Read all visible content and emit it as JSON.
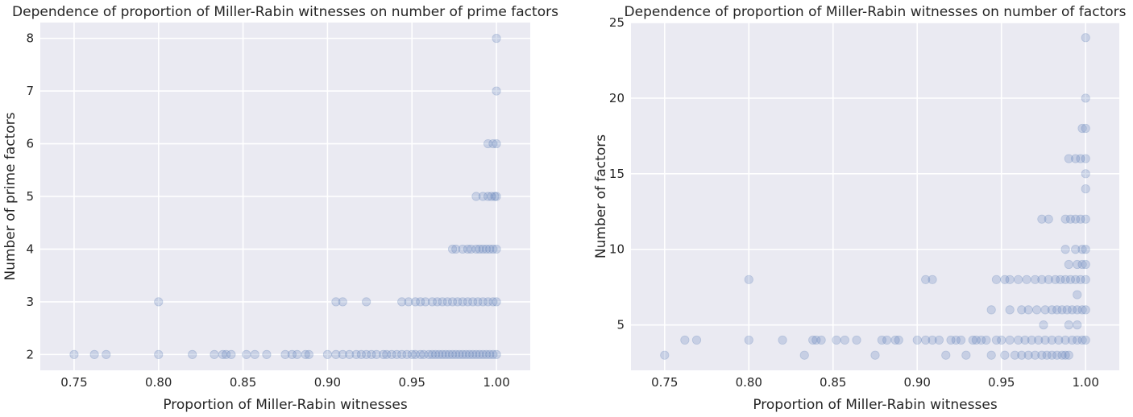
{
  "chart_data": [
    {
      "type": "scatter",
      "title": "Dependence of proportion of Miller-Rabin witnesses on number of prime factors",
      "xlabel": "Proportion of Miller-Rabin witnesses",
      "ylabel": "Number of prime factors",
      "xlim": [
        0.73,
        1.02
      ],
      "ylim": [
        1.7,
        8.3
      ],
      "xticks": [
        0.75,
        0.8,
        0.85,
        0.9,
        0.95,
        1.0
      ],
      "xtick_labels": [
        "0.75",
        "0.80",
        "0.85",
        "0.90",
        "0.95",
        "1.00"
      ],
      "yticks": [
        2,
        3,
        4,
        5,
        6,
        7,
        8
      ],
      "ytick_labels": [
        "2",
        "3",
        "4",
        "5",
        "6",
        "7",
        "8"
      ],
      "grid": true,
      "color": "#4c72b0",
      "points": [
        [
          0.75,
          2
        ],
        [
          0.762,
          2
        ],
        [
          0.769,
          2
        ],
        [
          0.8,
          2
        ],
        [
          0.82,
          2
        ],
        [
          0.833,
          2
        ],
        [
          0.838,
          2
        ],
        [
          0.84,
          2
        ],
        [
          0.843,
          2
        ],
        [
          0.852,
          2
        ],
        [
          0.857,
          2
        ],
        [
          0.864,
          2
        ],
        [
          0.875,
          2
        ],
        [
          0.879,
          2
        ],
        [
          0.882,
          2
        ],
        [
          0.887,
          2
        ],
        [
          0.889,
          2
        ],
        [
          0.9,
          2
        ],
        [
          0.905,
          2
        ],
        [
          0.909,
          2
        ],
        [
          0.913,
          2
        ],
        [
          0.917,
          2
        ],
        [
          0.92,
          2
        ],
        [
          0.923,
          2
        ],
        [
          0.926,
          2
        ],
        [
          0.929,
          2
        ],
        [
          0.933,
          2
        ],
        [
          0.935,
          2
        ],
        [
          0.938,
          2
        ],
        [
          0.941,
          2
        ],
        [
          0.944,
          2
        ],
        [
          0.947,
          2
        ],
        [
          0.95,
          2
        ],
        [
          0.952,
          2
        ],
        [
          0.955,
          2
        ],
        [
          0.957,
          2
        ],
        [
          0.96,
          2
        ],
        [
          0.962,
          2
        ],
        [
          0.964,
          2
        ],
        [
          0.966,
          2
        ],
        [
          0.968,
          2
        ],
        [
          0.97,
          2
        ],
        [
          0.972,
          2
        ],
        [
          0.974,
          2
        ],
        [
          0.976,
          2
        ],
        [
          0.978,
          2
        ],
        [
          0.98,
          2
        ],
        [
          0.982,
          2
        ],
        [
          0.984,
          2
        ],
        [
          0.986,
          2
        ],
        [
          0.988,
          2
        ],
        [
          0.99,
          2
        ],
        [
          0.992,
          2
        ],
        [
          0.994,
          2
        ],
        [
          0.996,
          2
        ],
        [
          0.998,
          2
        ],
        [
          1.0,
          2
        ],
        [
          0.8,
          3
        ],
        [
          0.905,
          3
        ],
        [
          0.909,
          3
        ],
        [
          0.923,
          3
        ],
        [
          0.944,
          3
        ],
        [
          0.948,
          3
        ],
        [
          0.952,
          3
        ],
        [
          0.955,
          3
        ],
        [
          0.958,
          3
        ],
        [
          0.962,
          3
        ],
        [
          0.965,
          3
        ],
        [
          0.968,
          3
        ],
        [
          0.971,
          3
        ],
        [
          0.974,
          3
        ],
        [
          0.977,
          3
        ],
        [
          0.98,
          3
        ],
        [
          0.983,
          3
        ],
        [
          0.986,
          3
        ],
        [
          0.989,
          3
        ],
        [
          0.992,
          3
        ],
        [
          0.995,
          3
        ],
        [
          0.998,
          3
        ],
        [
          1.0,
          3
        ],
        [
          0.974,
          4
        ],
        [
          0.976,
          4
        ],
        [
          0.98,
          4
        ],
        [
          0.983,
          4
        ],
        [
          0.985,
          4
        ],
        [
          0.988,
          4
        ],
        [
          0.99,
          4
        ],
        [
          0.992,
          4
        ],
        [
          0.994,
          4
        ],
        [
          0.996,
          4
        ],
        [
          0.998,
          4
        ],
        [
          1.0,
          4
        ],
        [
          0.988,
          5
        ],
        [
          0.992,
          5
        ],
        [
          0.995,
          5
        ],
        [
          0.997,
          5
        ],
        [
          0.999,
          5
        ],
        [
          1.0,
          5
        ],
        [
          0.995,
          6
        ],
        [
          0.998,
          6
        ],
        [
          1.0,
          6
        ],
        [
          1.0,
          7
        ],
        [
          1.0,
          8
        ]
      ]
    },
    {
      "type": "scatter",
      "title": "Dependence of proportion of Miller-Rabin witnesses on number of factors",
      "xlabel": "Proportion of Miller-Rabin witnesses",
      "ylabel": "Number of factors",
      "xlim": [
        0.73,
        1.02
      ],
      "ylim": [
        2.0,
        25.0
      ],
      "xticks": [
        0.75,
        0.8,
        0.85,
        0.9,
        0.95,
        1.0
      ],
      "xtick_labels": [
        "0.75",
        "0.80",
        "0.85",
        "0.90",
        "0.95",
        "1.00"
      ],
      "yticks": [
        5,
        10,
        15,
        20,
        25
      ],
      "ytick_labels": [
        "5",
        "10",
        "15",
        "20",
        "25"
      ],
      "grid": true,
      "color": "#4c72b0",
      "points": [
        [
          0.75,
          3
        ],
        [
          0.833,
          3
        ],
        [
          0.875,
          3
        ],
        [
          0.917,
          3
        ],
        [
          0.929,
          3
        ],
        [
          0.944,
          3
        ],
        [
          0.952,
          3
        ],
        [
          0.958,
          3
        ],
        [
          0.962,
          3
        ],
        [
          0.966,
          3
        ],
        [
          0.97,
          3
        ],
        [
          0.974,
          3
        ],
        [
          0.977,
          3
        ],
        [
          0.98,
          3
        ],
        [
          0.983,
          3
        ],
        [
          0.986,
          3
        ],
        [
          0.988,
          3
        ],
        [
          0.99,
          3
        ],
        [
          0.762,
          4
        ],
        [
          0.769,
          4
        ],
        [
          0.8,
          4
        ],
        [
          0.82,
          4
        ],
        [
          0.838,
          4
        ],
        [
          0.84,
          4
        ],
        [
          0.843,
          4
        ],
        [
          0.852,
          4
        ],
        [
          0.857,
          4
        ],
        [
          0.864,
          4
        ],
        [
          0.879,
          4
        ],
        [
          0.882,
          4
        ],
        [
          0.887,
          4
        ],
        [
          0.889,
          4
        ],
        [
          0.9,
          4
        ],
        [
          0.905,
          4
        ],
        [
          0.909,
          4
        ],
        [
          0.913,
          4
        ],
        [
          0.92,
          4
        ],
        [
          0.923,
          4
        ],
        [
          0.926,
          4
        ],
        [
          0.933,
          4
        ],
        [
          0.935,
          4
        ],
        [
          0.938,
          4
        ],
        [
          0.941,
          4
        ],
        [
          0.947,
          4
        ],
        [
          0.95,
          4
        ],
        [
          0.955,
          4
        ],
        [
          0.96,
          4
        ],
        [
          0.964,
          4
        ],
        [
          0.968,
          4
        ],
        [
          0.972,
          4
        ],
        [
          0.976,
          4
        ],
        [
          0.98,
          4
        ],
        [
          0.984,
          4
        ],
        [
          0.988,
          4
        ],
        [
          0.992,
          4
        ],
        [
          0.995,
          4
        ],
        [
          0.998,
          4
        ],
        [
          1.0,
          4
        ],
        [
          0.975,
          5
        ],
        [
          0.99,
          5
        ],
        [
          0.995,
          5
        ],
        [
          0.944,
          6
        ],
        [
          0.955,
          6
        ],
        [
          0.962,
          6
        ],
        [
          0.966,
          6
        ],
        [
          0.971,
          6
        ],
        [
          0.976,
          6
        ],
        [
          0.98,
          6
        ],
        [
          0.983,
          6
        ],
        [
          0.986,
          6
        ],
        [
          0.989,
          6
        ],
        [
          0.992,
          6
        ],
        [
          0.995,
          6
        ],
        [
          0.998,
          6
        ],
        [
          1.0,
          6
        ],
        [
          0.995,
          7
        ],
        [
          0.8,
          8
        ],
        [
          0.905,
          8
        ],
        [
          0.909,
          8
        ],
        [
          0.947,
          8
        ],
        [
          0.952,
          8
        ],
        [
          0.955,
          8
        ],
        [
          0.96,
          8
        ],
        [
          0.965,
          8
        ],
        [
          0.97,
          8
        ],
        [
          0.974,
          8
        ],
        [
          0.978,
          8
        ],
        [
          0.982,
          8
        ],
        [
          0.985,
          8
        ],
        [
          0.988,
          8
        ],
        [
          0.991,
          8
        ],
        [
          0.994,
          8
        ],
        [
          0.997,
          8
        ],
        [
          1.0,
          8
        ],
        [
          0.99,
          9
        ],
        [
          0.995,
          9
        ],
        [
          0.998,
          9
        ],
        [
          1.0,
          9
        ],
        [
          0.988,
          10
        ],
        [
          0.994,
          10
        ],
        [
          0.998,
          10
        ],
        [
          1.0,
          10
        ],
        [
          0.974,
          12
        ],
        [
          0.978,
          12
        ],
        [
          0.988,
          12
        ],
        [
          0.991,
          12
        ],
        [
          0.994,
          12
        ],
        [
          0.997,
          12
        ],
        [
          1.0,
          12
        ],
        [
          1.0,
          14
        ],
        [
          1.0,
          15
        ],
        [
          0.99,
          16
        ],
        [
          0.994,
          16
        ],
        [
          0.997,
          16
        ],
        [
          1.0,
          16
        ],
        [
          0.998,
          18
        ],
        [
          1.0,
          18
        ],
        [
          1.0,
          20
        ],
        [
          1.0,
          24
        ]
      ]
    }
  ]
}
